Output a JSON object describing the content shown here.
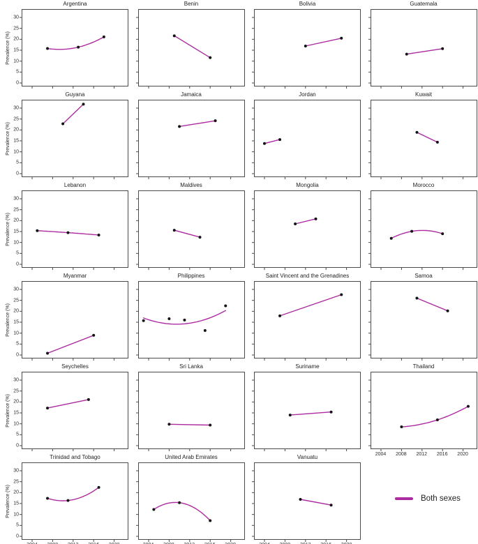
{
  "figure": {
    "ylabel": "Prevalence (%)",
    "legend_label": "Both sexes",
    "colors": {
      "line": "#AC2BA0",
      "point": "#141414",
      "frame": "#4a4a4a",
      "text": "#2b2b2b"
    }
  },
  "chart_data": {
    "type": "line",
    "title": "",
    "xlabel": "",
    "ylabel": "Prevalence (%)",
    "x_ticks": [
      2004,
      2008,
      2012,
      2016,
      2020
    ],
    "y_ticks": [
      0,
      5,
      10,
      15,
      20,
      25,
      30
    ],
    "xlim": [
      2002.0,
      2022.8
    ],
    "ylim": [
      -1.6,
      33.8
    ],
    "grid": false,
    "curve_style": "quadratic-fit-through-points",
    "legend": {
      "position": "bottom-right",
      "entries": [
        {
          "name": "Both sexes",
          "color": "#AC2BA0"
        }
      ]
    },
    "panels": [
      {
        "country": "Argentina",
        "series": "Both sexes",
        "points": [
          [
            2007,
            15.8
          ],
          [
            2013,
            16.4
          ],
          [
            2018,
            21.1
          ]
        ]
      },
      {
        "country": "Benin",
        "series": "Both sexes",
        "points": [
          [
            2009,
            21.6
          ],
          [
            2016,
            11.6
          ]
        ]
      },
      {
        "country": "Bolivia",
        "series": "Both sexes",
        "points": [
          [
            2012,
            16.9
          ],
          [
            2019,
            20.5
          ]
        ]
      },
      {
        "country": "Guatemala",
        "series": "Both sexes",
        "points": [
          [
            2009,
            13.2
          ],
          [
            2016,
            15.7
          ]
        ]
      },
      {
        "country": "Guyana",
        "series": "Both sexes",
        "points": [
          [
            2010,
            22.8
          ],
          [
            2014,
            31.8
          ]
        ]
      },
      {
        "country": "Jamaica",
        "series": "Both sexes",
        "points": [
          [
            2010,
            21.6
          ],
          [
            2017,
            24.2
          ]
        ]
      },
      {
        "country": "Jordan",
        "series": "Both sexes",
        "points": [
          [
            2004,
            13.8
          ],
          [
            2007,
            15.6
          ]
        ]
      },
      {
        "country": "Kuwait",
        "series": "Both sexes",
        "points": [
          [
            2011,
            18.9
          ],
          [
            2015,
            14.4
          ]
        ]
      },
      {
        "country": "Lebanon",
        "series": "Both sexes",
        "points": [
          [
            2005,
            15.4
          ],
          [
            2011,
            14.5
          ],
          [
            2017,
            13.4
          ]
        ]
      },
      {
        "country": "Maldives",
        "series": "Both sexes",
        "points": [
          [
            2009,
            15.6
          ],
          [
            2014,
            12.4
          ]
        ]
      },
      {
        "country": "Mongolia",
        "series": "Both sexes",
        "points": [
          [
            2010,
            18.5
          ],
          [
            2014,
            20.8
          ]
        ]
      },
      {
        "country": "Morocco",
        "series": "Both sexes",
        "points": [
          [
            2006,
            11.9
          ],
          [
            2010,
            15.1
          ],
          [
            2016,
            14.0
          ]
        ]
      },
      {
        "country": "Myanmar",
        "series": "Both sexes",
        "points": [
          [
            2007,
            0.8
          ],
          [
            2016,
            9.0
          ]
        ]
      },
      {
        "country": "Philippines",
        "series": "Both sexes",
        "points": [
          [
            2003,
            15.7
          ],
          [
            2008,
            16.6
          ],
          [
            2011,
            16.0
          ],
          [
            2015,
            11.2
          ],
          [
            2019,
            22.5
          ]
        ]
      },
      {
        "country": "Saint Vincent and the Grenadines",
        "series": "Both sexes",
        "points": [
          [
            2007,
            17.9
          ],
          [
            2019,
            27.6
          ]
        ]
      },
      {
        "country": "Samoa",
        "series": "Both sexes",
        "points": [
          [
            2011,
            26.0
          ],
          [
            2017,
            20.2
          ]
        ]
      },
      {
        "country": "Seychelles",
        "series": "Both sexes",
        "points": [
          [
            2007,
            17.2
          ],
          [
            2015,
            21.1
          ]
        ]
      },
      {
        "country": "Sri Lanka",
        "series": "Both sexes",
        "points": [
          [
            2008,
            9.8
          ],
          [
            2016,
            9.4
          ]
        ]
      },
      {
        "country": "Suriname",
        "series": "Both sexes",
        "points": [
          [
            2009,
            14.0
          ],
          [
            2017,
            15.4
          ]
        ]
      },
      {
        "country": "Thailand",
        "series": "Both sexes",
        "points": [
          [
            2008,
            8.6
          ],
          [
            2015,
            11.8
          ],
          [
            2021,
            18.0
          ]
        ]
      },
      {
        "country": "Trinidad and Tobago",
        "series": "Both sexes",
        "points": [
          [
            2007,
            17.4
          ],
          [
            2011,
            16.4
          ],
          [
            2017,
            22.4
          ]
        ]
      },
      {
        "country": "United Arab Emirates",
        "series": "Both sexes",
        "points": [
          [
            2005,
            12.3
          ],
          [
            2010,
            15.4
          ],
          [
            2016,
            7.2
          ]
        ]
      },
      {
        "country": "Vanuatu",
        "series": "Both sexes",
        "points": [
          [
            2011,
            16.9
          ],
          [
            2017,
            14.3
          ]
        ]
      }
    ]
  }
}
